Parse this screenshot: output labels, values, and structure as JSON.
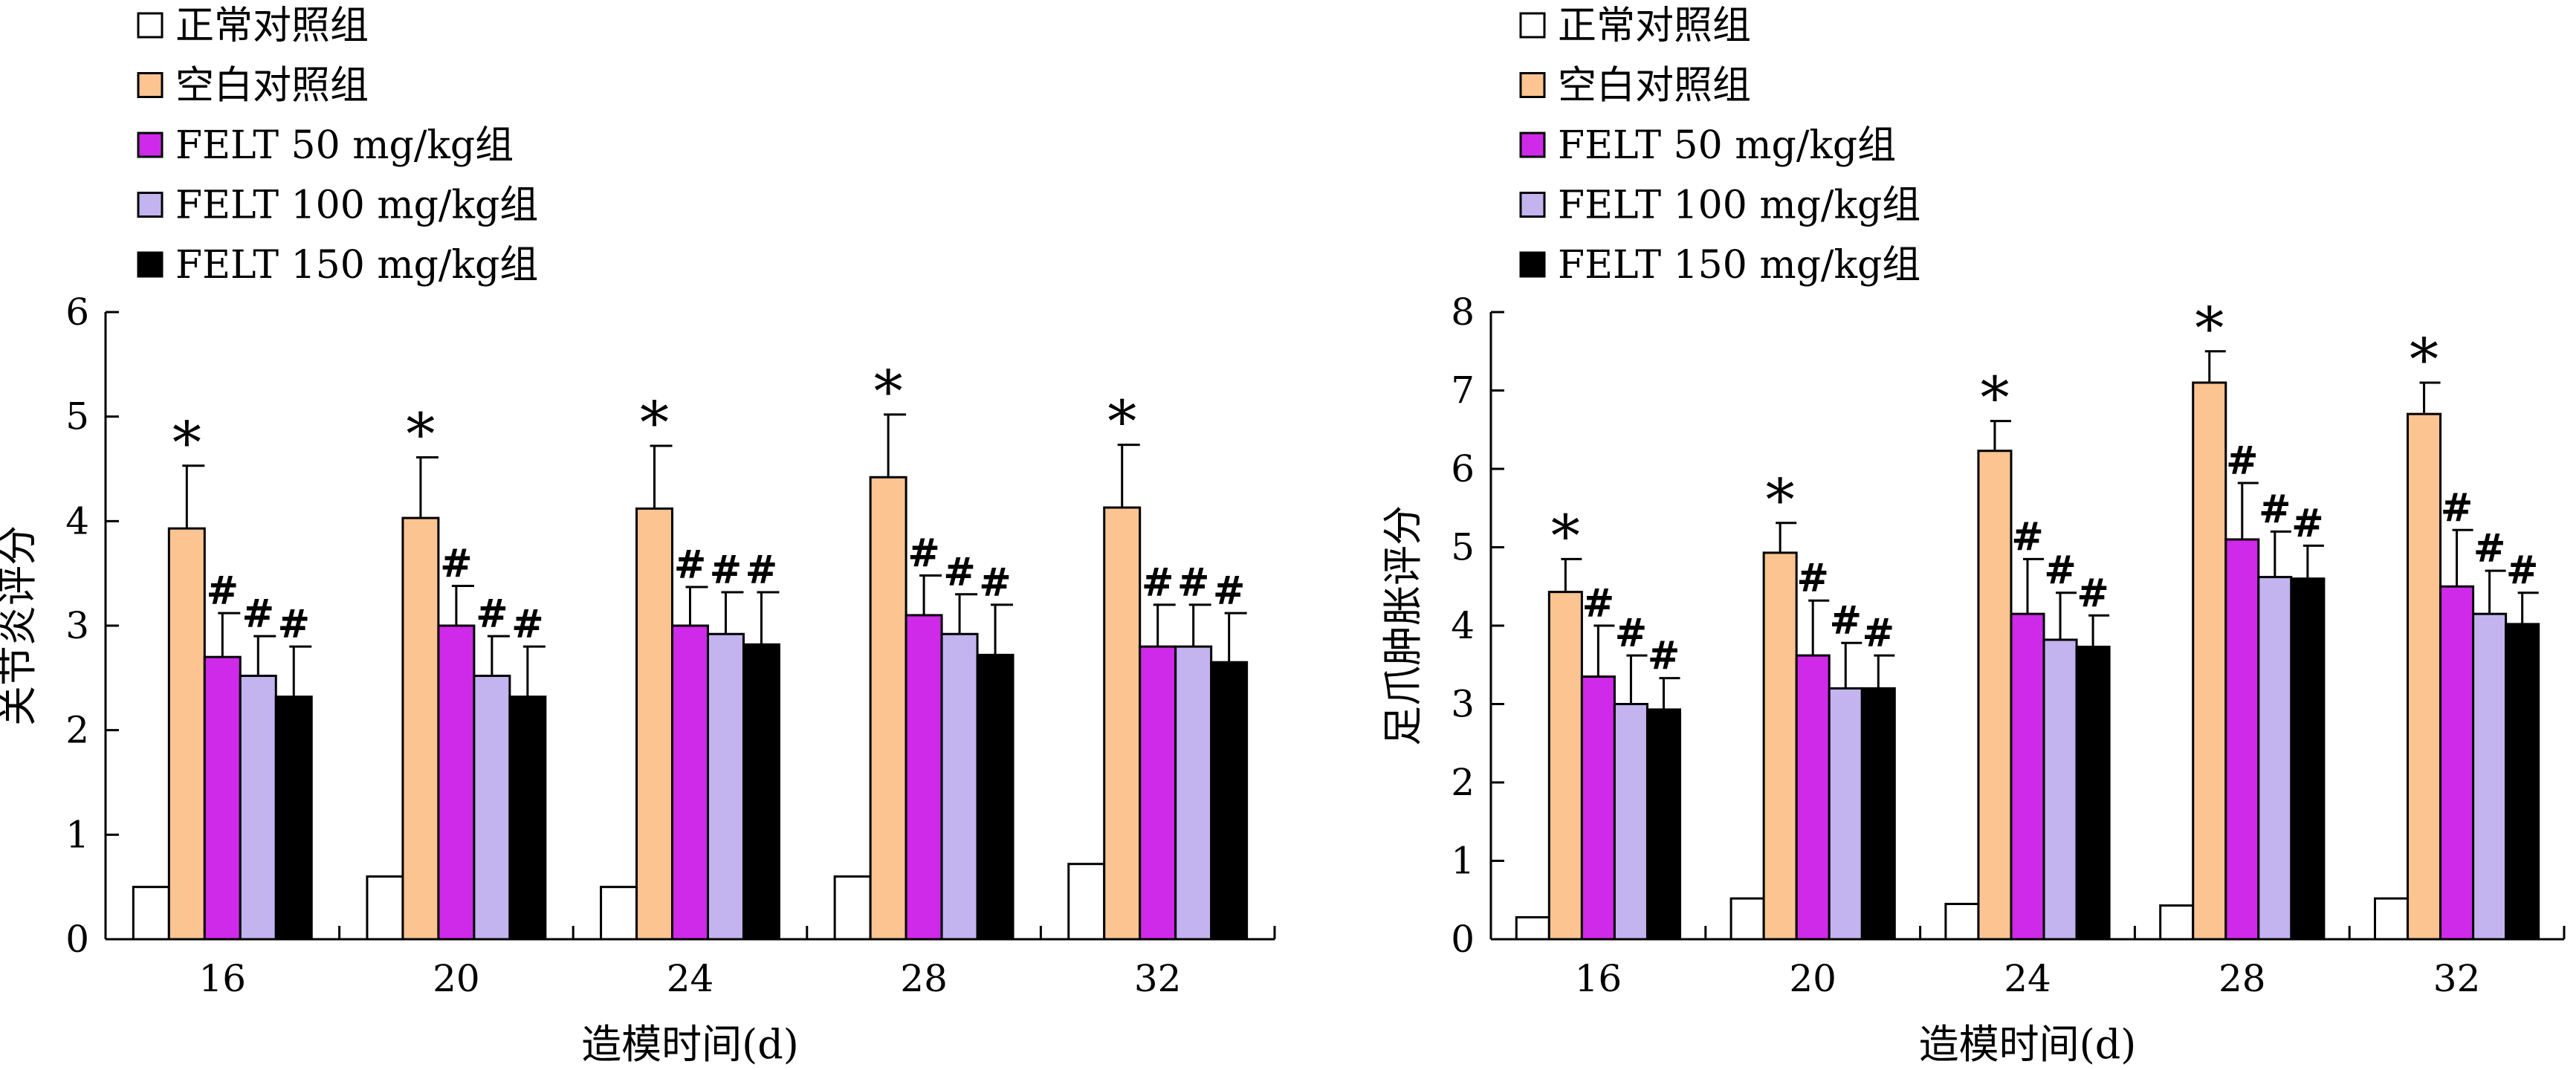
{
  "chart_data": [
    {
      "type": "bar",
      "xlabel": "造模时间(d)",
      "ylabel": "关节炎评分",
      "categories": [
        "16",
        "20",
        "24",
        "28",
        "32"
      ],
      "ylim": [
        0,
        6
      ],
      "yticks": [
        "0",
        "1",
        "2",
        "3",
        "4",
        "5",
        "6"
      ],
      "legend_position": "top-left",
      "series": [
        {
          "name": "正常对照组",
          "color": "#ffffff",
          "values": [
            0.5,
            0.6,
            0.5,
            0.6,
            0.72
          ],
          "errors": [
            0,
            0,
            0,
            0,
            0
          ],
          "marks": [
            "",
            "",
            "",
            "",
            ""
          ]
        },
        {
          "name": "空白对照组",
          "color": "#fbc491",
          "values": [
            3.93,
            4.03,
            4.12,
            4.42,
            4.13
          ],
          "errors": [
            0.6,
            0.58,
            0.6,
            0.6,
            0.6
          ],
          "marks": [
            "*",
            "*",
            "*",
            "*",
            "*"
          ]
        },
        {
          "name": "FELT 50 mg/kg组",
          "color": "#cf29e9",
          "values": [
            2.7,
            3.0,
            3.0,
            3.1,
            2.8
          ],
          "errors": [
            0.42,
            0.38,
            0.37,
            0.38,
            0.4
          ],
          "marks": [
            "#",
            "#",
            "#",
            "#",
            "#"
          ]
        },
        {
          "name": "FELT 100 mg/kg组",
          "color": "#c3b4f0",
          "values": [
            2.52,
            2.52,
            2.92,
            2.92,
            2.8
          ],
          "errors": [
            0.38,
            0.38,
            0.4,
            0.38,
            0.4
          ],
          "marks": [
            "#",
            "#",
            "#",
            "#",
            "#"
          ]
        },
        {
          "name": "FELT 150 mg/kg组",
          "color": "#000000",
          "values": [
            2.32,
            2.32,
            2.82,
            2.72,
            2.65
          ],
          "errors": [
            0.48,
            0.48,
            0.5,
            0.48,
            0.47
          ],
          "marks": [
            "#",
            "#",
            "#",
            "#",
            "#"
          ]
        }
      ]
    },
    {
      "type": "bar",
      "xlabel": "造模时间(d)",
      "ylabel": "足爪肿胀评分",
      "categories": [
        "16",
        "20",
        "24",
        "28",
        "32"
      ],
      "ylim": [
        0,
        8
      ],
      "yticks": [
        "0",
        "1",
        "2",
        "3",
        "4",
        "5",
        "6",
        "7",
        "8"
      ],
      "legend_position": "top-left",
      "series": [
        {
          "name": "正常对照组",
          "color": "#ffffff",
          "values": [
            0.28,
            0.52,
            0.45,
            0.43,
            0.52
          ],
          "errors": [
            0,
            0,
            0,
            0,
            0
          ],
          "marks": [
            "",
            "",
            "",
            "",
            ""
          ]
        },
        {
          "name": "空白对照组",
          "color": "#fbc491",
          "values": [
            4.43,
            4.93,
            6.23,
            7.1,
            6.7
          ],
          "errors": [
            0.42,
            0.38,
            0.38,
            0.4,
            0.4
          ],
          "marks": [
            "*",
            "*",
            "*",
            "*",
            "*"
          ]
        },
        {
          "name": "FELT 50 mg/kg组",
          "color": "#cf29e9",
          "values": [
            3.35,
            3.62,
            4.15,
            5.1,
            4.5
          ],
          "errors": [
            0.65,
            0.7,
            0.7,
            0.72,
            0.72
          ],
          "marks": [
            "#",
            "#",
            "#",
            "#",
            "#"
          ]
        },
        {
          "name": "FELT 100 mg/kg组",
          "color": "#c3b4f0",
          "values": [
            3.0,
            3.2,
            3.82,
            4.62,
            4.15
          ],
          "errors": [
            0.62,
            0.58,
            0.6,
            0.58,
            0.55
          ],
          "marks": [
            "#",
            "#",
            "#",
            "#",
            "#"
          ]
        },
        {
          "name": "FELT 150 mg/kg组",
          "color": "#000000",
          "values": [
            2.93,
            3.2,
            3.73,
            4.6,
            4.02
          ],
          "errors": [
            0.4,
            0.42,
            0.4,
            0.42,
            0.4
          ],
          "marks": [
            "#",
            "#",
            "#",
            "#",
            "#"
          ]
        }
      ]
    }
  ]
}
